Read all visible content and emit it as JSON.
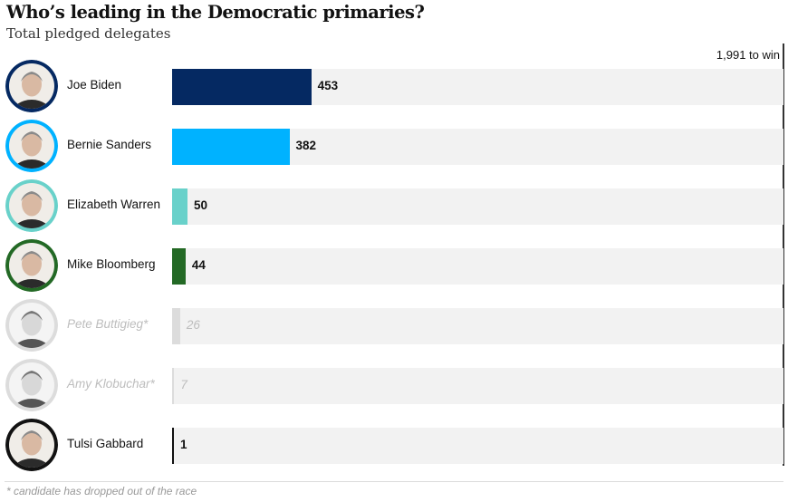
{
  "title": "Who’s leading in the Democratic primaries?",
  "subtitle": "Total pledged delegates",
  "goal_label": "1,991 to win",
  "footnote": "* candidate has dropped out of the race",
  "chart_data": {
    "type": "bar",
    "orientation": "horizontal",
    "title": "Who’s leading in the Democratic primaries?",
    "subtitle": "Total pledged delegates",
    "xlim": [
      0,
      1991
    ],
    "threshold": {
      "value": 1991,
      "label": "1,991 to win"
    },
    "categories": [
      "Joe Biden",
      "Bernie Sanders",
      "Elizabeth Warren",
      "Mike Bloomberg",
      "Pete Buttigieg*",
      "Amy Klobuchar*",
      "Tulsi Gabbard"
    ],
    "values": [
      453,
      382,
      50,
      44,
      26,
      7,
      1
    ],
    "bars": [
      {
        "name": "Joe Biden",
        "value": 453,
        "color": "#052962",
        "dropped": false,
        "avatar_color": "#052962",
        "icon": "joe-biden-portrait-icon"
      },
      {
        "name": "Bernie Sanders",
        "value": 382,
        "color": "#00b2ff",
        "dropped": false,
        "avatar_color": "#00b2ff",
        "icon": "bernie-sanders-portrait-icon"
      },
      {
        "name": "Elizabeth Warren",
        "value": 50,
        "color": "#69d1ca",
        "dropped": false,
        "avatar_color": "#69d1ca",
        "icon": "elizabeth-warren-portrait-icon"
      },
      {
        "name": "Mike Bloomberg",
        "value": 44,
        "color": "#236925",
        "dropped": false,
        "avatar_color": "#236925",
        "icon": "mike-bloomberg-portrait-icon"
      },
      {
        "name": "Pete Buttigieg*",
        "value": 26,
        "color": "#dcdcdc",
        "dropped": true,
        "avatar_color": "#dcdcdc",
        "icon": "pete-buttigieg-portrait-icon"
      },
      {
        "name": "Amy Klobuchar*",
        "value": 7,
        "color": "#dcdcdc",
        "dropped": true,
        "avatar_color": "#dcdcdc",
        "icon": "amy-klobuchar-portrait-icon"
      },
      {
        "name": "Tulsi Gabbard",
        "value": 1,
        "color": "#121212",
        "dropped": false,
        "avatar_color": "#121212",
        "icon": "tulsi-gabbard-portrait-icon"
      }
    ]
  }
}
